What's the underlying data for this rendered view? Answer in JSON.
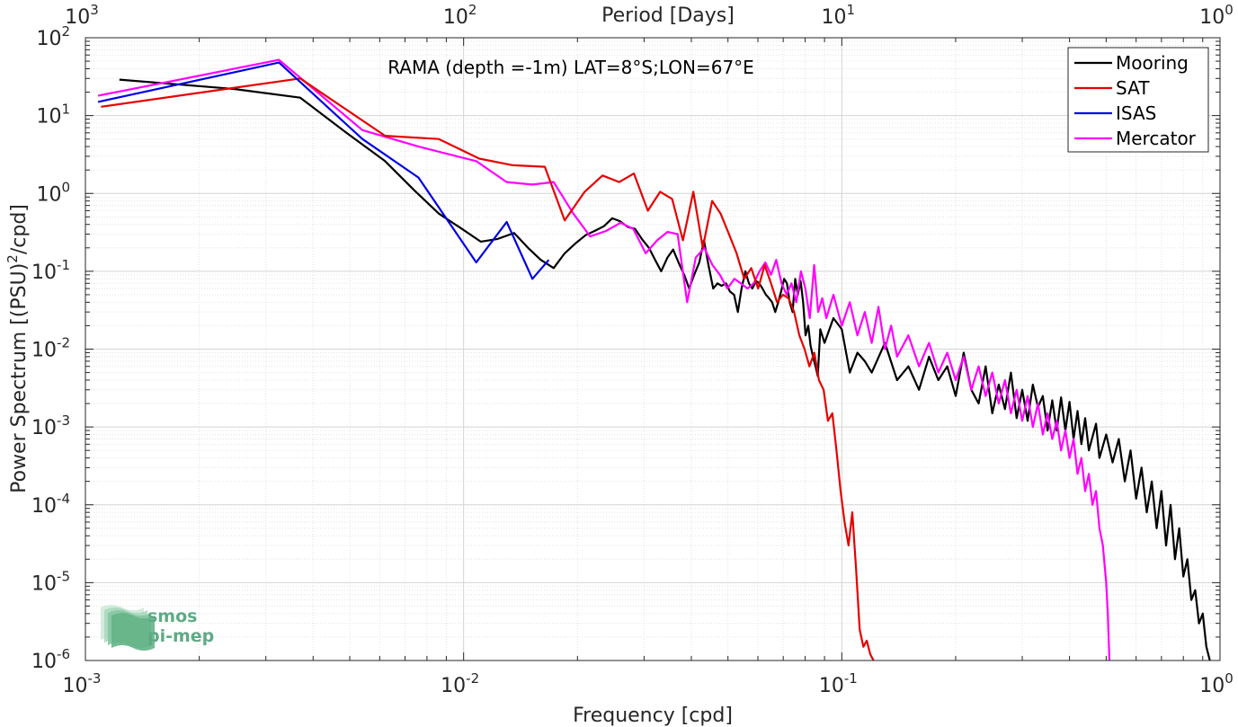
{
  "colors": {
    "Mooring": "#000000",
    "SAT": "#e60000",
    "ISAS": "#0000e6",
    "Mercator": "#ff00ff",
    "logo": "#5faa85"
  },
  "logo": {
    "line1": "smos",
    "line2": "pi-mep"
  },
  "chart_data": {
    "type": "line",
    "title": "RAMA (depth =-1m) LAT=8°S;LON=67°E",
    "xlabel": "Frequency [cpd]",
    "ylabel": "Power Spectrum [(PSU)",
    "ylabel_sup": "2",
    "ylabel_end": "/cpd]",
    "top_axis_label": "Period [Days]",
    "xscale": "log",
    "yscale": "log",
    "xlim": [
      0.001,
      1
    ],
    "ylim": [
      1e-06,
      100
    ],
    "grid": true,
    "legend_position": "top-right",
    "x_ticks": [
      {
        "base": "10",
        "exp": "-3"
      },
      {
        "base": "10",
        "exp": "-2"
      },
      {
        "base": "10",
        "exp": "-1"
      },
      {
        "base": "10",
        "exp": "0"
      }
    ],
    "top_ticks": [
      {
        "base": "10",
        "exp": "3"
      },
      {
        "base": "10",
        "exp": "2"
      },
      {
        "base": "10",
        "exp": "1"
      },
      {
        "base": "10",
        "exp": "0"
      }
    ],
    "y_ticks": [
      {
        "base": "10",
        "exp": "2"
      },
      {
        "base": "10",
        "exp": "1"
      },
      {
        "base": "10",
        "exp": "0"
      },
      {
        "base": "10",
        "exp": "-1"
      },
      {
        "base": "10",
        "exp": "-2"
      },
      {
        "base": "10",
        "exp": "-3"
      },
      {
        "base": "10",
        "exp": "-4"
      },
      {
        "base": "10",
        "exp": "-5"
      },
      {
        "base": "10",
        "exp": "-6"
      }
    ],
    "series": [
      {
        "name": "Mooring",
        "points": [
          [
            0.00123,
            29
          ],
          [
            0.00247,
            22
          ],
          [
            0.0037,
            17
          ],
          [
            0.0049,
            6
          ],
          [
            0.0062,
            2.6
          ],
          [
            0.0074,
            1.1
          ],
          [
            0.0086,
            0.55
          ],
          [
            0.0099,
            0.35
          ],
          [
            0.0111,
            0.24
          ],
          [
            0.0123,
            0.26
          ],
          [
            0.0136,
            0.31
          ],
          [
            0.0148,
            0.2
          ],
          [
            0.016,
            0.14
          ],
          [
            0.0173,
            0.11
          ],
          [
            0.0185,
            0.17
          ],
          [
            0.0198,
            0.23
          ],
          [
            0.021,
            0.29
          ],
          [
            0.0222,
            0.33
          ],
          [
            0.0235,
            0.38
          ],
          [
            0.0247,
            0.48
          ],
          [
            0.0259,
            0.44
          ],
          [
            0.0272,
            0.37
          ],
          [
            0.0284,
            0.35
          ],
          [
            0.0296,
            0.26
          ],
          [
            0.0309,
            0.2
          ],
          [
            0.0321,
            0.14
          ],
          [
            0.0333,
            0.1
          ],
          [
            0.0346,
            0.15
          ],
          [
            0.0358,
            0.19
          ],
          [
            0.037,
            0.13
          ],
          [
            0.0383,
            0.09
          ],
          [
            0.0395,
            0.06
          ],
          [
            0.0407,
            0.09
          ],
          [
            0.042,
            0.13
          ],
          [
            0.0432,
            0.25
          ],
          [
            0.0444,
            0.12
          ],
          [
            0.0457,
            0.06
          ],
          [
            0.0469,
            0.07
          ],
          [
            0.0481,
            0.065
          ],
          [
            0.0494,
            0.07
          ],
          [
            0.0506,
            0.055
          ],
          [
            0.0519,
            0.05
          ],
          [
            0.0531,
            0.03
          ],
          [
            0.0543,
            0.06
          ],
          [
            0.0556,
            0.1
          ],
          [
            0.0568,
            0.07
          ],
          [
            0.058,
            0.06
          ],
          [
            0.0593,
            0.075
          ],
          [
            0.0605,
            0.07
          ],
          [
            0.0617,
            0.06
          ],
          [
            0.063,
            0.05
          ],
          [
            0.0642,
            0.045
          ],
          [
            0.0654,
            0.04
          ],
          [
            0.0667,
            0.03
          ],
          [
            0.0679,
            0.04
          ],
          [
            0.0691,
            0.055
          ],
          [
            0.0704,
            0.08
          ],
          [
            0.0716,
            0.07
          ],
          [
            0.0728,
            0.04
          ],
          [
            0.0741,
            0.03
          ],
          [
            0.0753,
            0.08
          ],
          [
            0.0765,
            0.05
          ],
          [
            0.0778,
            0.075
          ],
          [
            0.079,
            0.04
          ],
          [
            0.0802,
            0.015
          ],
          [
            0.0815,
            0.02
          ],
          [
            0.0827,
            0.011
          ],
          [
            0.0839,
            0.008
          ],
          [
            0.0852,
            0.006
          ],
          [
            0.0864,
            0.0045
          ],
          [
            0.0877,
            0.018
          ],
          [
            0.09,
            0.012
          ],
          [
            0.095,
            0.025
          ],
          [
            0.1,
            0.018
          ],
          [
            0.105,
            0.005
          ],
          [
            0.11,
            0.009
          ],
          [
            0.115,
            0.007
          ],
          [
            0.12,
            0.005
          ],
          [
            0.13,
            0.012
          ],
          [
            0.14,
            0.004
          ],
          [
            0.15,
            0.006
          ],
          [
            0.16,
            0.003
          ],
          [
            0.17,
            0.008
          ],
          [
            0.18,
            0.004
          ],
          [
            0.19,
            0.006
          ],
          [
            0.2,
            0.0025
          ],
          [
            0.21,
            0.009
          ],
          [
            0.22,
            0.003
          ],
          [
            0.23,
            0.002
          ],
          [
            0.24,
            0.006
          ],
          [
            0.25,
            0.0015
          ],
          [
            0.26,
            0.0035
          ],
          [
            0.27,
            0.0017
          ],
          [
            0.28,
            0.005
          ],
          [
            0.29,
            0.0013
          ],
          [
            0.3,
            0.003
          ],
          [
            0.31,
            0.0012
          ],
          [
            0.32,
            0.0035
          ],
          [
            0.33,
            0.0018
          ],
          [
            0.34,
            0.0025
          ],
          [
            0.35,
            0.0009
          ],
          [
            0.36,
            0.0022
          ],
          [
            0.37,
            0.0009
          ],
          [
            0.38,
            0.0024
          ],
          [
            0.39,
            0.0009
          ],
          [
            0.4,
            0.0021
          ],
          [
            0.41,
            0.0007
          ],
          [
            0.42,
            0.0016
          ],
          [
            0.43,
            0.0006
          ],
          [
            0.44,
            0.0013
          ],
          [
            0.45,
            0.0005
          ],
          [
            0.47,
            0.0011
          ],
          [
            0.48,
            0.0004
          ],
          [
            0.5,
            0.0008
          ],
          [
            0.52,
            0.00035
          ],
          [
            0.54,
            0.0007
          ],
          [
            0.56,
            0.0002
          ],
          [
            0.58,
            0.0005
          ],
          [
            0.6,
            0.00012
          ],
          [
            0.62,
            0.0003
          ],
          [
            0.64,
            8e-05
          ],
          [
            0.66,
            0.0002
          ],
          [
            0.68,
            5e-05
          ],
          [
            0.7,
            0.00015
          ],
          [
            0.72,
            3e-05
          ],
          [
            0.74,
            0.0001
          ],
          [
            0.76,
            2e-05
          ],
          [
            0.78,
            5e-05
          ],
          [
            0.8,
            1.2e-05
          ],
          [
            0.82,
            2e-05
          ],
          [
            0.84,
            6e-06
          ],
          [
            0.86,
            8e-06
          ],
          [
            0.88,
            3e-06
          ],
          [
            0.9,
            4e-06
          ],
          [
            0.92,
            1.5e-06
          ],
          [
            0.94,
            1e-06
          ]
        ]
      },
      {
        "name": "SAT",
        "points": [
          [
            0.0011,
            13
          ],
          [
            0.0037,
            30
          ],
          [
            0.0062,
            5.5
          ],
          [
            0.0086,
            5
          ],
          [
            0.011,
            2.8
          ],
          [
            0.0135,
            2.3
          ],
          [
            0.0164,
            2.2
          ],
          [
            0.0185,
            0.45
          ],
          [
            0.0209,
            1.05
          ],
          [
            0.0233,
            1.7
          ],
          [
            0.0258,
            1.4
          ],
          [
            0.0282,
            1.8
          ],
          [
            0.0307,
            0.6
          ],
          [
            0.0331,
            1.05
          ],
          [
            0.0356,
            0.85
          ],
          [
            0.038,
            0.25
          ],
          [
            0.0405,
            1.05
          ],
          [
            0.0429,
            0.2
          ],
          [
            0.0454,
            0.8
          ],
          [
            0.0478,
            0.55
          ],
          [
            0.0503,
            0.3
          ],
          [
            0.0527,
            0.17
          ],
          [
            0.0552,
            0.08
          ],
          [
            0.0576,
            0.11
          ],
          [
            0.0601,
            0.06
          ],
          [
            0.0625,
            0.12
          ],
          [
            0.065,
            0.07
          ],
          [
            0.0674,
            0.04
          ],
          [
            0.0699,
            0.05
          ],
          [
            0.0723,
            0.045
          ],
          [
            0.0748,
            0.03
          ],
          [
            0.0772,
            0.015
          ],
          [
            0.0797,
            0.01
          ],
          [
            0.0821,
            0.006
          ],
          [
            0.0846,
            0.009
          ],
          [
            0.087,
            0.004
          ],
          [
            0.0895,
            0.003
          ],
          [
            0.0919,
            0.0012
          ],
          [
            0.0944,
            0.0015
          ],
          [
            0.0968,
            0.0005
          ],
          [
            0.0993,
            0.00015
          ],
          [
            0.1017,
            6e-05
          ],
          [
            0.1042,
            3e-05
          ],
          [
            0.1066,
            8e-05
          ],
          [
            0.1091,
            1.5e-05
          ],
          [
            0.1115,
            2.5e-06
          ],
          [
            0.114,
            1.5e-06
          ],
          [
            0.1164,
            1.8e-06
          ],
          [
            0.1189,
            1.2e-06
          ],
          [
            0.1213,
            1e-06
          ]
        ]
      },
      {
        "name": "ISAS",
        "points": [
          [
            0.00108,
            15
          ],
          [
            0.00325,
            48
          ],
          [
            0.0054,
            5
          ],
          [
            0.0076,
            1.6
          ],
          [
            0.0108,
            0.13
          ],
          [
            0.013,
            0.43
          ],
          [
            0.0152,
            0.08
          ],
          [
            0.0168,
            0.14
          ]
        ]
      },
      {
        "name": "Mercator",
        "points": [
          [
            0.00108,
            18
          ],
          [
            0.00325,
            52
          ],
          [
            0.0054,
            6.5
          ],
          [
            0.0076,
            4
          ],
          [
            0.0108,
            2.6
          ],
          [
            0.013,
            1.4
          ],
          [
            0.0152,
            1.3
          ],
          [
            0.0173,
            1.4
          ],
          [
            0.0195,
            0.55
          ],
          [
            0.0216,
            0.28
          ],
          [
            0.0238,
            0.33
          ],
          [
            0.026,
            0.42
          ],
          [
            0.0281,
            0.35
          ],
          [
            0.0303,
            0.17
          ],
          [
            0.0325,
            0.25
          ],
          [
            0.0346,
            0.32
          ],
          [
            0.0368,
            0.3
          ],
          [
            0.039,
            0.04
          ],
          [
            0.0411,
            0.15
          ],
          [
            0.0433,
            0.2
          ],
          [
            0.0455,
            0.12
          ],
          [
            0.0476,
            0.09
          ],
          [
            0.0498,
            0.06
          ],
          [
            0.052,
            0.08
          ],
          [
            0.0541,
            0.07
          ],
          [
            0.0563,
            0.06
          ],
          [
            0.0585,
            0.07
          ],
          [
            0.0606,
            0.1
          ],
          [
            0.0628,
            0.13
          ],
          [
            0.065,
            0.09
          ],
          [
            0.0671,
            0.14
          ],
          [
            0.0693,
            0.07
          ],
          [
            0.0715,
            0.05
          ],
          [
            0.0736,
            0.07
          ],
          [
            0.0758,
            0.04
          ],
          [
            0.078,
            0.1
          ],
          [
            0.0801,
            0.06
          ],
          [
            0.0823,
            0.025
          ],
          [
            0.0845,
            0.12
          ],
          [
            0.0866,
            0.03
          ],
          [
            0.0888,
            0.045
          ],
          [
            0.091,
            0.025
          ],
          [
            0.095,
            0.05
          ],
          [
            0.1,
            0.02
          ],
          [
            0.105,
            0.04
          ],
          [
            0.11,
            0.015
          ],
          [
            0.115,
            0.03
          ],
          [
            0.12,
            0.012
          ],
          [
            0.125,
            0.035
          ],
          [
            0.13,
            0.01
          ],
          [
            0.135,
            0.02
          ],
          [
            0.14,
            0.008
          ],
          [
            0.15,
            0.015
          ],
          [
            0.16,
            0.006
          ],
          [
            0.17,
            0.012
          ],
          [
            0.18,
            0.005
          ],
          [
            0.19,
            0.009
          ],
          [
            0.2,
            0.004
          ],
          [
            0.21,
            0.008
          ],
          [
            0.22,
            0.003
          ],
          [
            0.23,
            0.006
          ],
          [
            0.24,
            0.0025
          ],
          [
            0.25,
            0.005
          ],
          [
            0.26,
            0.002
          ],
          [
            0.27,
            0.004
          ],
          [
            0.28,
            0.0015
          ],
          [
            0.29,
            0.003
          ],
          [
            0.3,
            0.0012
          ],
          [
            0.31,
            0.0025
          ],
          [
            0.32,
            0.001
          ],
          [
            0.33,
            0.002
          ],
          [
            0.34,
            0.0008
          ],
          [
            0.35,
            0.0015
          ],
          [
            0.36,
            0.0007
          ],
          [
            0.37,
            0.0012
          ],
          [
            0.38,
            0.0005
          ],
          [
            0.39,
            0.0009
          ],
          [
            0.4,
            0.0004
          ],
          [
            0.41,
            0.0007
          ],
          [
            0.42,
            0.00025
          ],
          [
            0.43,
            0.0004
          ],
          [
            0.44,
            0.00015
          ],
          [
            0.45,
            0.00025
          ],
          [
            0.46,
            0.0001
          ],
          [
            0.47,
            0.00015
          ],
          [
            0.48,
            5e-05
          ],
          [
            0.49,
            3e-05
          ],
          [
            0.5,
            1e-05
          ],
          [
            0.505,
            4e-06
          ],
          [
            0.51,
            1e-06
          ]
        ]
      }
    ]
  }
}
